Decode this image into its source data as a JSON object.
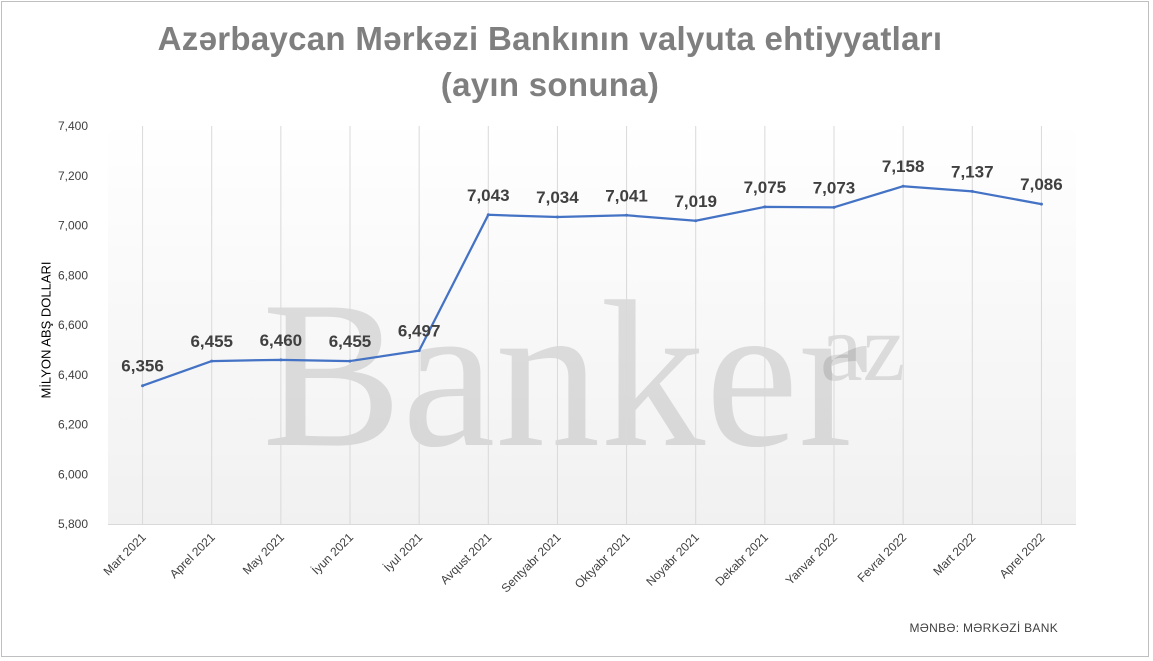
{
  "chart_data": {
    "type": "line",
    "title_line1": "Azərbaycan Mərkəzi Bankının valyuta ehtiyyatları",
    "title_line2": "(ayın sonuna)",
    "ylabel": "MİLYON ABŞ DOLLARI",
    "xlabel": "",
    "source": "MƏNBƏ: MƏRKƏZİ BANK",
    "watermark": "Banker",
    "watermark_sup": "az",
    "ylim": [
      5800,
      7400
    ],
    "yticks": [
      5800,
      6000,
      6200,
      6400,
      6600,
      6800,
      7000,
      7200,
      7400
    ],
    "ytick_labels": [
      "5,800",
      "6,000",
      "6,200",
      "6,400",
      "6,600",
      "6,800",
      "7,000",
      "7,200",
      "7,400"
    ],
    "categories": [
      "Mart  2021",
      "Aprel 2021",
      "May 2021",
      "İyun  2021",
      "İyul  2021",
      "Avqust  2021",
      "Sentyabr  2021",
      "Oktyabr  2021",
      "Noyabr 2021",
      "Dekabr  2021",
      "Yanvar  2022",
      "Fevral  2022",
      "Mart  2022",
      "Aprel  2022"
    ],
    "values": [
      6356,
      6455,
      6460,
      6455,
      6497,
      7043,
      7034,
      7041,
      7019,
      7075,
      7073,
      7158,
      7137,
      7086
    ],
    "data_labels": [
      "6,356",
      "6,455",
      "6,460",
      "6,455",
      "6,497",
      "7,043",
      "7,034",
      "7,041",
      "7,019",
      "7,075",
      "7,073",
      "7,158",
      "7,137",
      "7,086"
    ],
    "grid": true,
    "line_color": "#4472c4",
    "legend": "none"
  }
}
